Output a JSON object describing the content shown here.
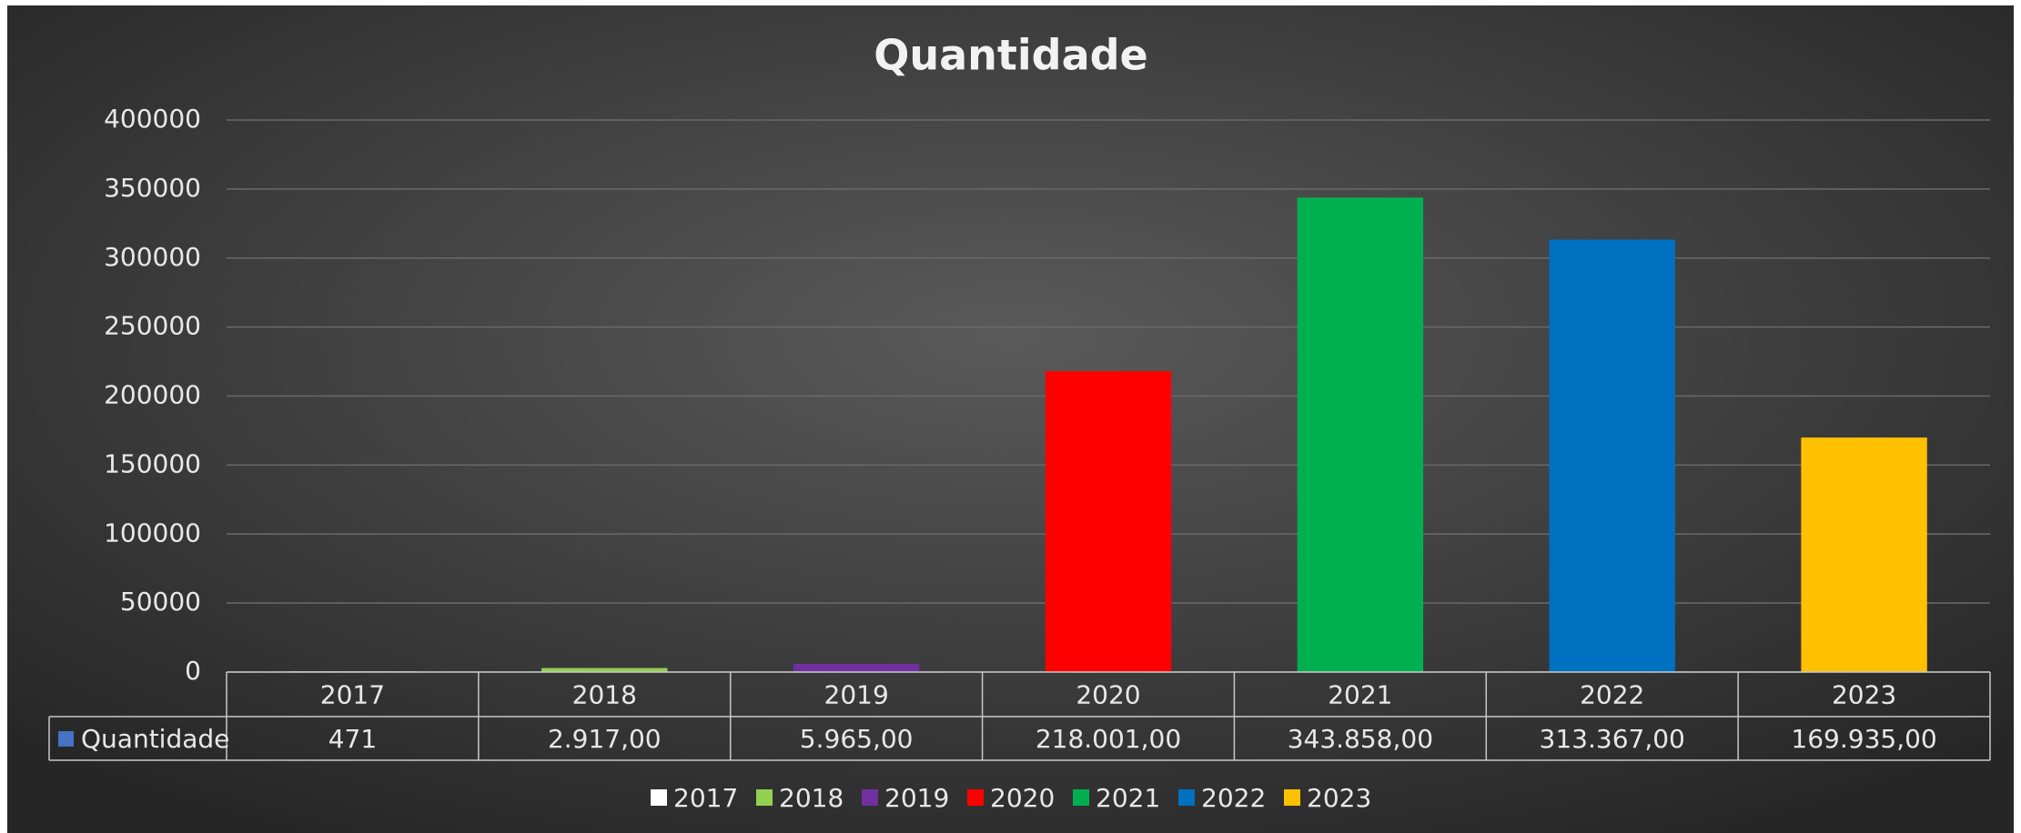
{
  "chart_data": {
    "type": "bar",
    "title": "Quantidade",
    "categories": [
      "2017",
      "2018",
      "2019",
      "2020",
      "2021",
      "2022",
      "2023"
    ],
    "series": [
      {
        "name": "Quantidade",
        "color": "#4472c4",
        "values": [
          471,
          2917,
          5965,
          218001,
          343858,
          313367,
          169935
        ],
        "value_labels": [
          "471",
          "2.917,00",
          "5.965,00",
          "218.001,00",
          "343.858,00",
          "313.367,00",
          "169.935,00"
        ],
        "colors": [
          "#ffffff",
          "#92d050",
          "#7030a0",
          "#ff0000",
          "#00b050",
          "#0070c0",
          "#ffc000"
        ]
      }
    ],
    "ylim": [
      0,
      400000
    ],
    "yticks": [
      0,
      50000,
      100000,
      150000,
      200000,
      250000,
      300000,
      350000,
      400000
    ],
    "grid": true,
    "data_table": true,
    "legend": "bottom"
  }
}
